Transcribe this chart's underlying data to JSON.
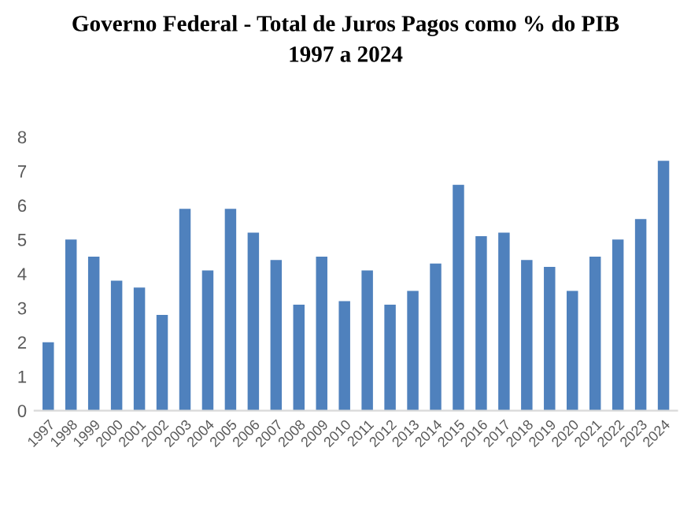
{
  "chart_data": {
    "type": "bar",
    "title": "Governo Federal - Total de Juros Pagos como % do PIB\n1997 a 2024",
    "categories": [
      "1997",
      "1998",
      "1999",
      "2000",
      "2001",
      "2002",
      "2003",
      "2004",
      "2005",
      "2006",
      "2007",
      "2008",
      "2009",
      "2010",
      "2011",
      "2012",
      "2013",
      "2014",
      "2015",
      "2016",
      "2017",
      "2018",
      "2019",
      "2020",
      "2021",
      "2022",
      "2023",
      "2024"
    ],
    "values": [
      2.0,
      5.0,
      4.5,
      3.8,
      3.6,
      2.8,
      5.9,
      4.1,
      5.9,
      5.2,
      4.4,
      3.1,
      4.5,
      3.2,
      4.1,
      3.1,
      3.5,
      4.3,
      6.6,
      5.1,
      5.2,
      4.4,
      4.2,
      3.5,
      4.5,
      5.0,
      5.6,
      7.3
    ],
    "color": "#4f81bd",
    "ylim": [
      0,
      8
    ],
    "yticks": [
      0,
      1,
      2,
      3,
      4,
      5,
      6,
      7,
      8
    ],
    "grid": false,
    "legend": false
  }
}
